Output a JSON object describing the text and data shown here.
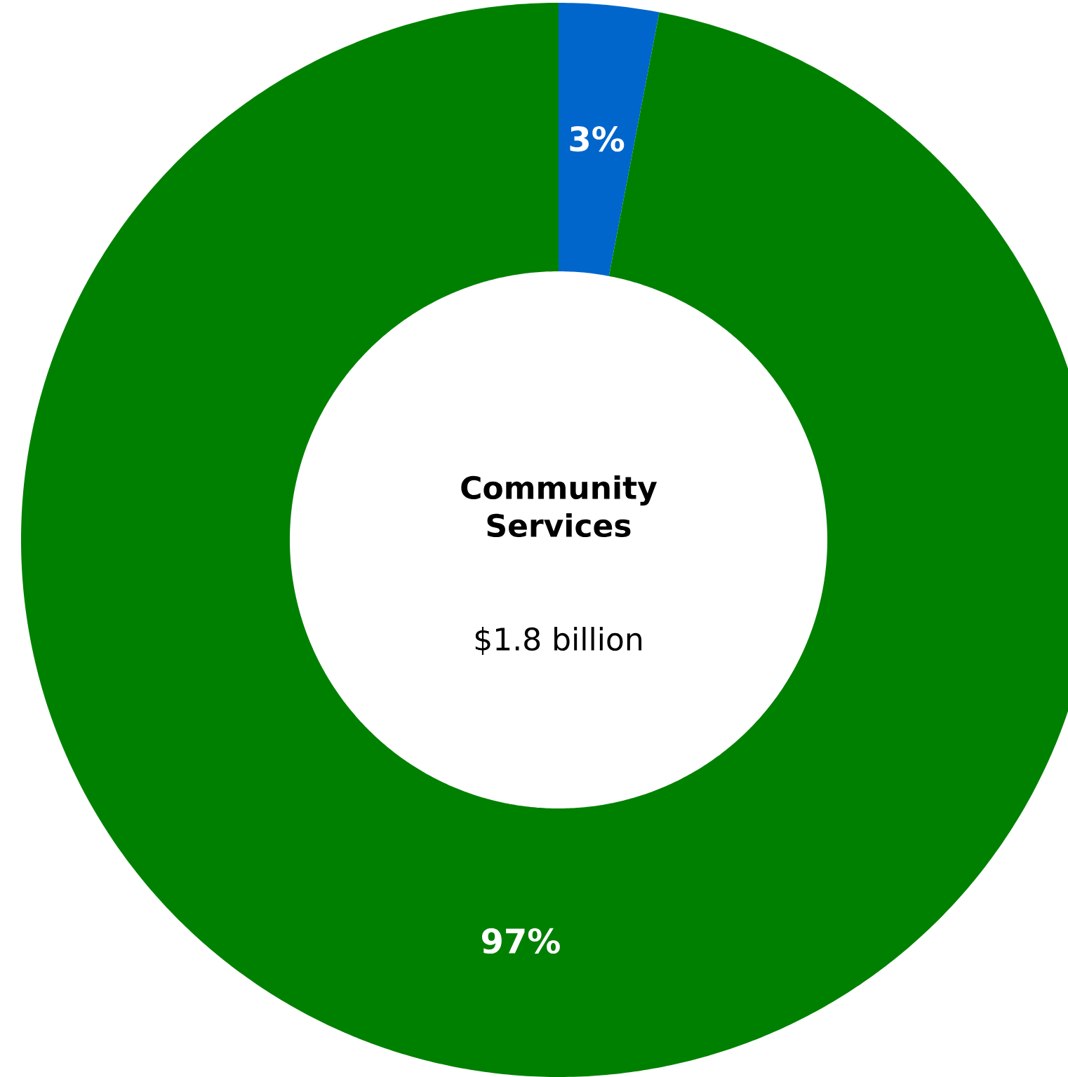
{
  "chart_data": {
    "type": "donut",
    "title": "Community Services",
    "subtitle": "$1.8 billion",
    "categories": [
      null,
      null
    ],
    "values": [
      3,
      97
    ],
    "colors": [
      "#0066cc",
      "#008000"
    ],
    "value_labels": [
      "3%",
      "97%"
    ]
  }
}
